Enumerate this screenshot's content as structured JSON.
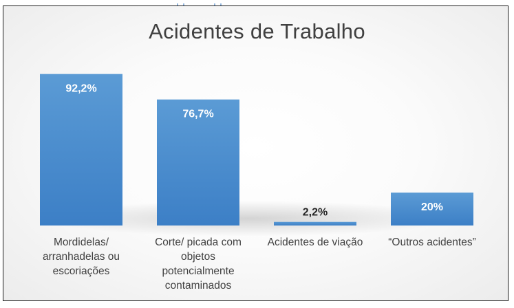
{
  "header_fragment": "...",
  "chart_data": {
    "type": "bar",
    "title": "Acidentes de Trabalho",
    "categories": [
      "Mordidelas/\narranhadelas ou\nescoriações",
      "Corte/ picada com\nobjetos\npotencialmente\ncontaminados",
      "Acidentes de viação",
      "“Outros acidentes”"
    ],
    "values": [
      92.2,
      76.7,
      2.2,
      20
    ],
    "data_labels": [
      "92,2%",
      "76,7%",
      "2,2%",
      "20%"
    ],
    "unit": "%",
    "ylim": [
      0,
      100
    ],
    "grid": false,
    "legend": "none",
    "colors": {
      "bar_top": "#5b9bd5",
      "bar_bottom": "#3c7fc6",
      "label_inside": "#ffffff",
      "label_outside": "#262626",
      "text": "#404040"
    }
  }
}
